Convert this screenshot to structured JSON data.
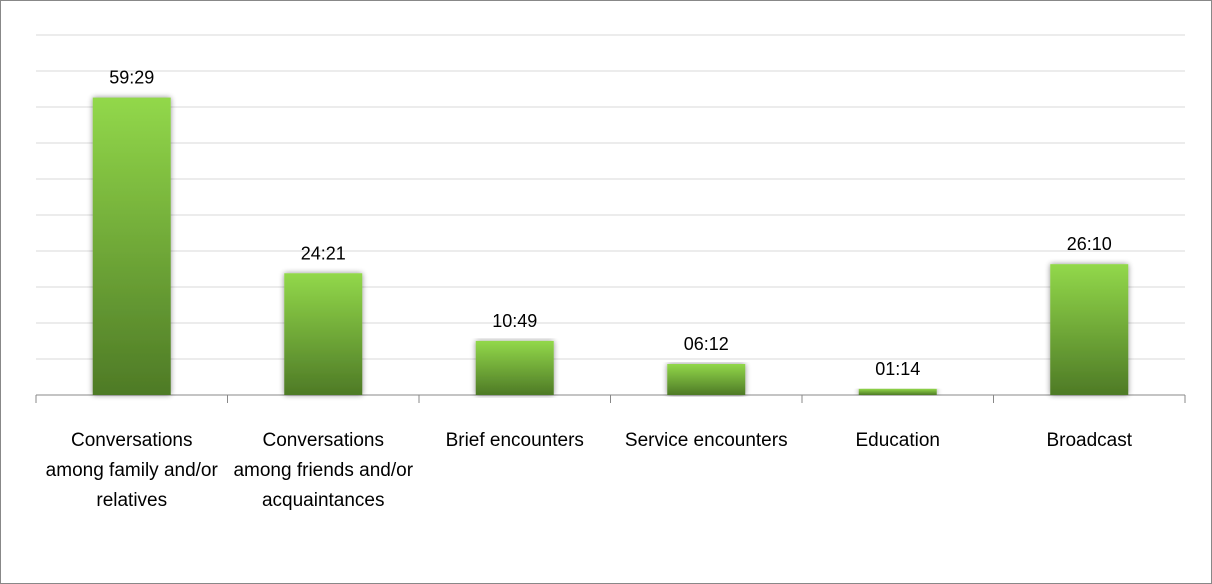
{
  "chart_data": {
    "type": "bar",
    "categories": [
      "Conversations among family and/or relatives",
      "Conversations among friends and/or acquaintances",
      "Brief encounters",
      "Service encounters",
      "Education",
      "Broadcast"
    ],
    "values": [
      59.4833,
      24.35,
      10.8167,
      6.2,
      1.2333,
      26.1667
    ],
    "value_labels": [
      "59:29",
      "24:21",
      "10:49",
      "06:12",
      "01:14",
      "26:10"
    ],
    "color": "#6aa232",
    "ylim": [
      0,
      72
    ],
    "yticks": [
      0,
      7.2,
      14.4,
      21.6,
      28.8,
      36,
      43.2,
      50.4,
      57.6,
      64.8,
      72
    ],
    "grid": true
  }
}
